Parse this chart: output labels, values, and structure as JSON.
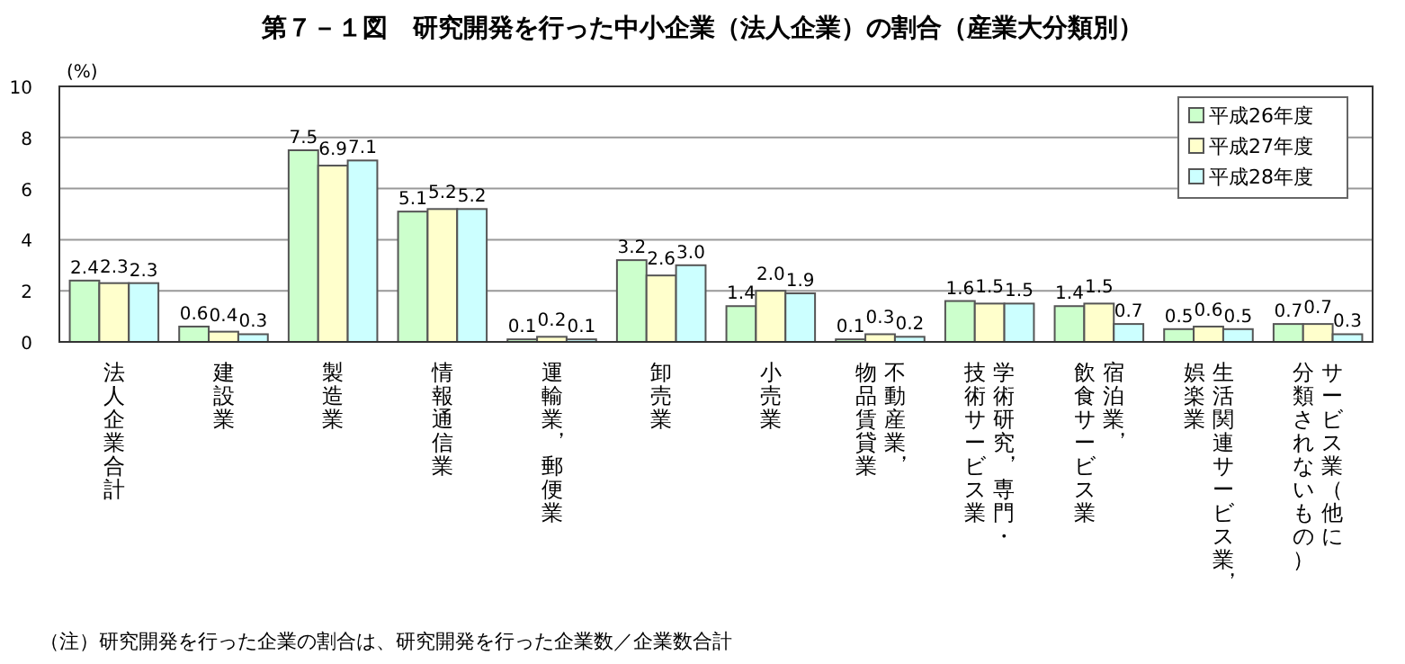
{
  "chart_data": {
    "type": "bar",
    "title": "第７－１図　研究開発を行った中小企業（法人企業）の割合（産業大分類別）",
    "ylabel": "(%)",
    "categories": [
      "法人企業合計",
      "建設業",
      "製造業",
      "情報通信業",
      "運輸業，郵便業",
      "卸売業",
      "小売業",
      "不動産業，物品賃貸業",
      "学術研究，専門・技術サービス業",
      "宿泊業，飲食サービス業",
      "生活関連サービス業，娯楽業",
      "サービス業（他に分類されないもの）"
    ],
    "series": [
      {
        "name": "平成26年度",
        "color": "#ccffcc",
        "values": [
          2.4,
          0.6,
          7.5,
          5.1,
          0.1,
          3.2,
          1.4,
          0.1,
          1.6,
          1.4,
          0.5,
          0.7
        ],
        "value_labels": [
          "2.4",
          "0.6",
          "7.5",
          "5.1",
          "0.1",
          "3.2",
          "1.4",
          "0.1",
          "1.6",
          "1.4",
          "0.5",
          "0.7"
        ]
      },
      {
        "name": "平成27年度",
        "color": "#ffffcc",
        "values": [
          2.3,
          0.4,
          6.9,
          5.2,
          0.2,
          2.6,
          2.0,
          0.3,
          1.5,
          1.5,
          0.6,
          0.7
        ],
        "value_labels": [
          "2.3",
          "0.4",
          "6.9",
          "5.2",
          "0.2",
          "2.6",
          "2.0",
          "0.3",
          "1.5",
          "1.5",
          "0.6",
          "0.7"
        ]
      },
      {
        "name": "平成28年度",
        "color": "#ccffff",
        "values": [
          2.3,
          0.3,
          7.1,
          5.2,
          0.1,
          3.0,
          1.9,
          0.2,
          1.5,
          0.7,
          0.5,
          0.3
        ],
        "value_labels": [
          "2.3",
          "0.3",
          "7.1",
          "5.2",
          "0.1",
          "3.0",
          "1.9",
          "0.2",
          "1.5",
          "0.7",
          "0.5",
          "0.3"
        ]
      }
    ],
    "ylim": [
      0,
      10
    ],
    "yticks": [
      0,
      2,
      4,
      6,
      8,
      10
    ],
    "grid": "y",
    "legend": "top right",
    "annotations": [
      "（注）研究開発を行った企業の割合は、研究開発を行った企業数／企業数合計"
    ]
  }
}
